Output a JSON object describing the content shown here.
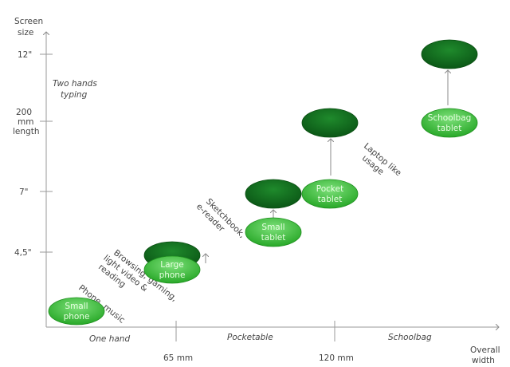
{
  "axes": {
    "y_title_line1": "Screen",
    "y_title_line2": "size",
    "x_title_line1": "Overall",
    "x_title_line2": "width",
    "y_ticks": {
      "t12": "12\"",
      "t200_1": "200",
      "t200_2": "mm",
      "t200_3": "length",
      "t7": "7\"",
      "t45": "4,5\""
    },
    "x_ticks": {
      "t65": "65 mm",
      "t120": "120 mm"
    },
    "x_regions": {
      "one_hand": "One hand",
      "pocketable": "Pocketable",
      "schoolbag": "Schoolbag"
    }
  },
  "annotations": {
    "two_hands_1": "Two hands",
    "two_hands_2": "typing",
    "phone_music": "Phone, music",
    "browsing_1": "Browsing, gaming,",
    "browsing_2": "light video &",
    "browsing_3": "reading",
    "sketchbook_1": "Sketchbook,",
    "sketchbook_2": "e-reader",
    "laptop_1": "Laptop like",
    "laptop_2": "usage"
  },
  "devices": {
    "small_phone_1": "Small",
    "small_phone_2": "phone",
    "large_phone_1": "Large",
    "large_phone_2": "phone",
    "small_tablet_1": "Small",
    "small_tablet_2": "tablet",
    "pocket_tablet_1": "Pocket",
    "pocket_tablet_2": "tablet",
    "schoolbag_tablet_1": "Schoolbag",
    "schoolbag_tablet_2": "tablet"
  },
  "colors": {
    "light_green": "#33c233",
    "dark_green": "#0f6e1c",
    "axis": "#9a9a9a"
  }
}
